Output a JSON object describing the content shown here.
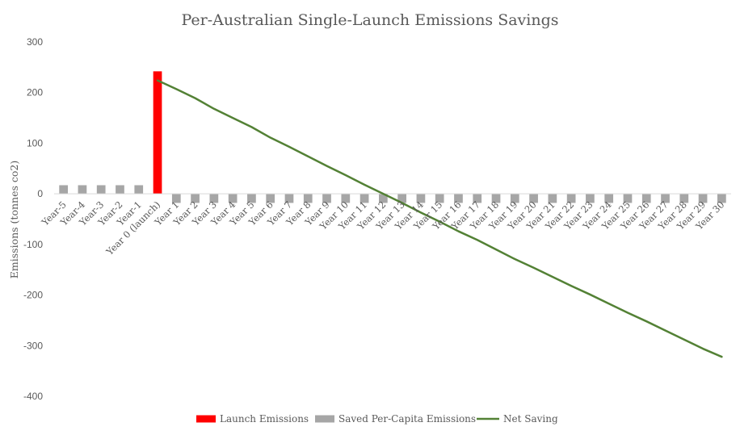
{
  "chart_data": {
    "type": "bar",
    "title": "Per-Australian Single-Launch Emissions Savings",
    "ylabel": "Emissions (tonnes co2)",
    "xlabel": "",
    "ylim": [
      -400,
      300
    ],
    "yticks": [
      300,
      200,
      100,
      0,
      -100,
      -200,
      -300,
      -400
    ],
    "grid": false,
    "legend_position": "bottom",
    "categories": [
      "Year-5",
      "Year-4",
      "Year-3",
      "Year-2",
      "Year-1",
      "Year 0 (launch)",
      "Year 1",
      "Year 2",
      "Year 3",
      "Year 4",
      "Year 5",
      "Year 6",
      "Year 7",
      "Year 8",
      "Year 9",
      "Year 10",
      "Year 11",
      "Year 12",
      "Year 13",
      "Year 14",
      "Year 15",
      "Year 16",
      "Year 17",
      "Year 18",
      "Year 19",
      "Year 20",
      "Year 21",
      "Year 22",
      "Year 23",
      "Year 24",
      "Year 25",
      "Year 26",
      "Year 27",
      "Year 28",
      "Year 29",
      "Year 30"
    ],
    "series": [
      {
        "name": "Launch Emissions",
        "kind": "bar",
        "color": "#ff0000",
        "values": [
          0,
          0,
          0,
          0,
          0,
          242,
          0,
          0,
          0,
          0,
          0,
          0,
          0,
          0,
          0,
          0,
          0,
          0,
          0,
          0,
          0,
          0,
          0,
          0,
          0,
          0,
          0,
          0,
          0,
          0,
          0,
          0,
          0,
          0,
          0,
          0
        ]
      },
      {
        "name": "Saved Per-Capita Emissions",
        "kind": "bar",
        "color": "#a6a6a6",
        "values": [
          17,
          17,
          17,
          17,
          17,
          0,
          -18,
          -18,
          -18,
          -18,
          -18,
          -18,
          -18,
          -18,
          -18,
          -18,
          -18,
          -18,
          -18,
          -18,
          -18,
          -18,
          -18,
          -18,
          -18,
          -18,
          -18,
          -18,
          -18,
          -18,
          -18,
          -18,
          -18,
          -18,
          -18,
          -18
        ]
      },
      {
        "name": "Net Saving",
        "kind": "line",
        "color": "#538135",
        "values": [
          null,
          null,
          null,
          null,
          null,
          224,
          207,
          189,
          168,
          150,
          132,
          111,
          93,
          74,
          55,
          37,
          18,
          0,
          -18,
          -37,
          -55,
          -74,
          -91,
          -110,
          -129,
          -146,
          -164,
          -182,
          -199,
          -217,
          -235,
          -252,
          -270,
          -288,
          -306,
          -322
        ]
      }
    ]
  }
}
